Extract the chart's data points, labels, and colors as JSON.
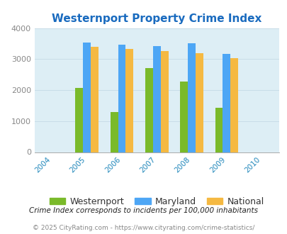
{
  "title": "Westernport Property Crime Index",
  "years": [
    2004,
    2005,
    2006,
    2007,
    2008,
    2009,
    2010
  ],
  "data_years": [
    2005,
    2006,
    2007,
    2008,
    2009
  ],
  "westernport": [
    2080,
    1300,
    2720,
    2270,
    1420
  ],
  "maryland": [
    3540,
    3470,
    3420,
    3510,
    3170
  ],
  "national": [
    3400,
    3330,
    3270,
    3200,
    3020
  ],
  "color_westernport": "#7aba2a",
  "color_maryland": "#4da6f5",
  "color_national": "#f5b942",
  "background_color": "#ddeef5",
  "title_color": "#1a6bbf",
  "ylim": [
    0,
    4000
  ],
  "yticks": [
    0,
    1000,
    2000,
    3000,
    4000
  ],
  "xlabel_color": "#2288bb",
  "footnote1": "Crime Index corresponds to incidents per 100,000 inhabitants",
  "footnote2": "© 2025 CityRating.com - https://www.cityrating.com/crime-statistics/",
  "bar_width": 0.22,
  "legend_labels": [
    "Westernport",
    "Maryland",
    "National"
  ]
}
